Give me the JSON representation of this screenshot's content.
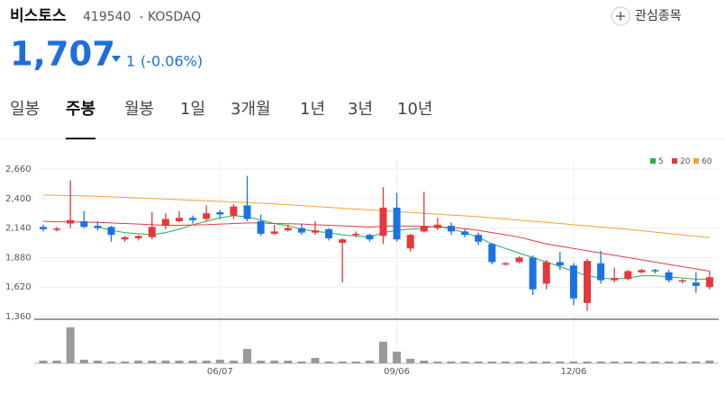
{
  "header": {
    "title": "비스토스",
    "code": "419540",
    "market": "KOSDAQ",
    "watch": "관심종목",
    "price": "1,707",
    "change": "1",
    "change_pct": "(-0.06%)"
  },
  "tabs": [
    "일봉",
    "주봉",
    "월봉",
    "1일",
    "3개월",
    "1년",
    "3년",
    "10년"
  ],
  "selected_tab": 1,
  "chart_data": {
    "type": "candlestick",
    "categories": [
      null,
      null,
      null,
      null,
      null,
      null,
      null,
      null,
      null,
      null,
      null,
      null,
      null,
      "06/07",
      null,
      null,
      null,
      null,
      null,
      null,
      null,
      null,
      null,
      null,
      null,
      null,
      "09/06",
      null,
      null,
      null,
      null,
      null,
      null,
      null,
      null,
      null,
      null,
      null,
      null,
      "12/06",
      null,
      null,
      null,
      null,
      null,
      null,
      null,
      null,
      null,
      null
    ],
    "open": [
      2150,
      2125,
      2180,
      2200,
      2160,
      2150,
      2040,
      2050,
      2060,
      2160,
      2200,
      2230,
      2220,
      2280,
      2250,
      2340,
      2200,
      2090,
      2120,
      2140,
      2100,
      2130,
      2010,
      2080,
      2080,
      2070,
      2320,
      1960,
      2110,
      2140,
      2160,
      2110,
      2080,
      2000,
      1820,
      1840,
      1880,
      1650,
      1840,
      1810,
      1480,
      1830,
      1680,
      1690,
      1750,
      1770,
      1750,
      1670,
      1660,
      1620
    ],
    "high": [
      2170,
      2150,
      2560,
      2290,
      2200,
      2160,
      2070,
      2080,
      2280,
      2270,
      2290,
      2250,
      2340,
      2300,
      2350,
      2600,
      2260,
      2170,
      2170,
      2180,
      2200,
      2140,
      2050,
      2110,
      2090,
      2500,
      2450,
      2090,
      2460,
      2230,
      2190,
      2130,
      2100,
      2010,
      1840,
      1890,
      1900,
      1860,
      1930,
      1830,
      1870,
      1940,
      1790,
      1770,
      1780,
      1780,
      1770,
      1690,
      1750,
      1760
    ],
    "low": [
      2110,
      2110,
      2140,
      2140,
      2120,
      2020,
      2020,
      2030,
      2040,
      2130,
      2190,
      2180,
      2200,
      2220,
      2220,
      2200,
      2070,
      2080,
      2110,
      2080,
      2080,
      2030,
      1660,
      2060,
      2020,
      2000,
      2020,
      1930,
      2100,
      2120,
      2080,
      2060,
      1990,
      1820,
      1810,
      1830,
      1550,
      1600,
      1770,
      1460,
      1410,
      1650,
      1660,
      1680,
      1740,
      1740,
      1660,
      1650,
      1570,
      1600
    ],
    "close": [
      2130,
      2135,
      2210,
      2150,
      2140,
      2080,
      2060,
      2070,
      2150,
      2220,
      2230,
      2210,
      2270,
      2260,
      2330,
      2220,
      2090,
      2110,
      2140,
      2100,
      2120,
      2050,
      2040,
      2090,
      2040,
      2320,
      2040,
      2080,
      2160,
      2170,
      2110,
      2080,
      2020,
      1840,
      1830,
      1880,
      1600,
      1840,
      1810,
      1520,
      1850,
      1680,
      1700,
      1760,
      1770,
      1760,
      1680,
      1680,
      1630,
      1707
    ],
    "up_color": "#e5383c",
    "down_color": "#1b73e3",
    "volume": [
      3,
      3,
      40,
      4,
      3,
      2,
      2,
      3,
      3,
      3,
      3,
      3,
      3,
      4,
      3,
      16,
      3,
      3,
      3,
      2,
      6,
      2,
      2,
      2,
      3,
      24,
      13,
      5,
      3,
      2,
      2,
      2,
      2,
      2,
      2,
      2,
      2,
      2,
      2,
      2,
      2,
      2,
      2,
      2,
      2,
      2,
      2,
      2,
      2,
      3
    ],
    "volume_lim": [
      0,
      42
    ],
    "volume_color": "#9a9a9a",
    "series": [
      {
        "name": "5",
        "color": "#22b14c",
        "values": [
          null,
          null,
          null,
          null,
          2150,
          2120,
          2100,
          2090,
          2080,
          2100,
          2130,
          2170,
          2200,
          2230,
          2250,
          2240,
          2210,
          2180,
          2160,
          2130,
          2110,
          2100,
          2080,
          2070,
          2060,
          2100,
          2120,
          2130,
          2140,
          2160,
          2130,
          2100,
          2060,
          2000,
          1960,
          1920,
          1880,
          1840,
          1800,
          1760,
          1720,
          1700,
          1690,
          1700,
          1720,
          1720,
          1710,
          1700,
          1690,
          1690
        ]
      },
      {
        "name": "20",
        "color": "#e8373e",
        "values": [
          2200,
          2195,
          2195,
          2192,
          2190,
          2185,
          2180,
          2175,
          2170,
          2165,
          2165,
          2168,
          2170,
          2175,
          2180,
          2185,
          2185,
          2180,
          2178,
          2175,
          2170,
          2165,
          2160,
          2155,
          2150,
          2155,
          2160,
          2158,
          2155,
          2150,
          2145,
          2135,
          2120,
          2100,
          2080,
          2060,
          2030,
          2000,
          1980,
          1960,
          1940,
          1920,
          1900,
          1880,
          1860,
          1840,
          1820,
          1800,
          1780,
          1760
        ]
      },
      {
        "name": "60",
        "color": "#f5a03a",
        "values": [
          2430,
          2428,
          2426,
          2424,
          2420,
          2415,
          2410,
          2405,
          2400,
          2395,
          2390,
          2385,
          2380,
          2375,
          2370,
          2365,
          2360,
          2352,
          2345,
          2338,
          2330,
          2322,
          2315,
          2308,
          2300,
          2292,
          2285,
          2278,
          2270,
          2262,
          2255,
          2248,
          2240,
          2230,
          2220,
          2210,
          2200,
          2190,
          2180,
          2170,
          2160,
          2150,
          2140,
          2128,
          2116,
          2104,
          2092,
          2080,
          2068,
          2056
        ]
      }
    ],
    "ylim": [
      1360,
      2660
    ],
    "yticks": [
      {
        "value": 1360,
        "label": "1,360"
      },
      {
        "value": 1620,
        "label": "1,620"
      },
      {
        "value": 1880,
        "label": "1,880"
      },
      {
        "value": 2140,
        "label": "2,140"
      },
      {
        "value": 2400,
        "label": "2,400"
      },
      {
        "value": 2660,
        "label": "2,660"
      }
    ],
    "grid": true
  }
}
